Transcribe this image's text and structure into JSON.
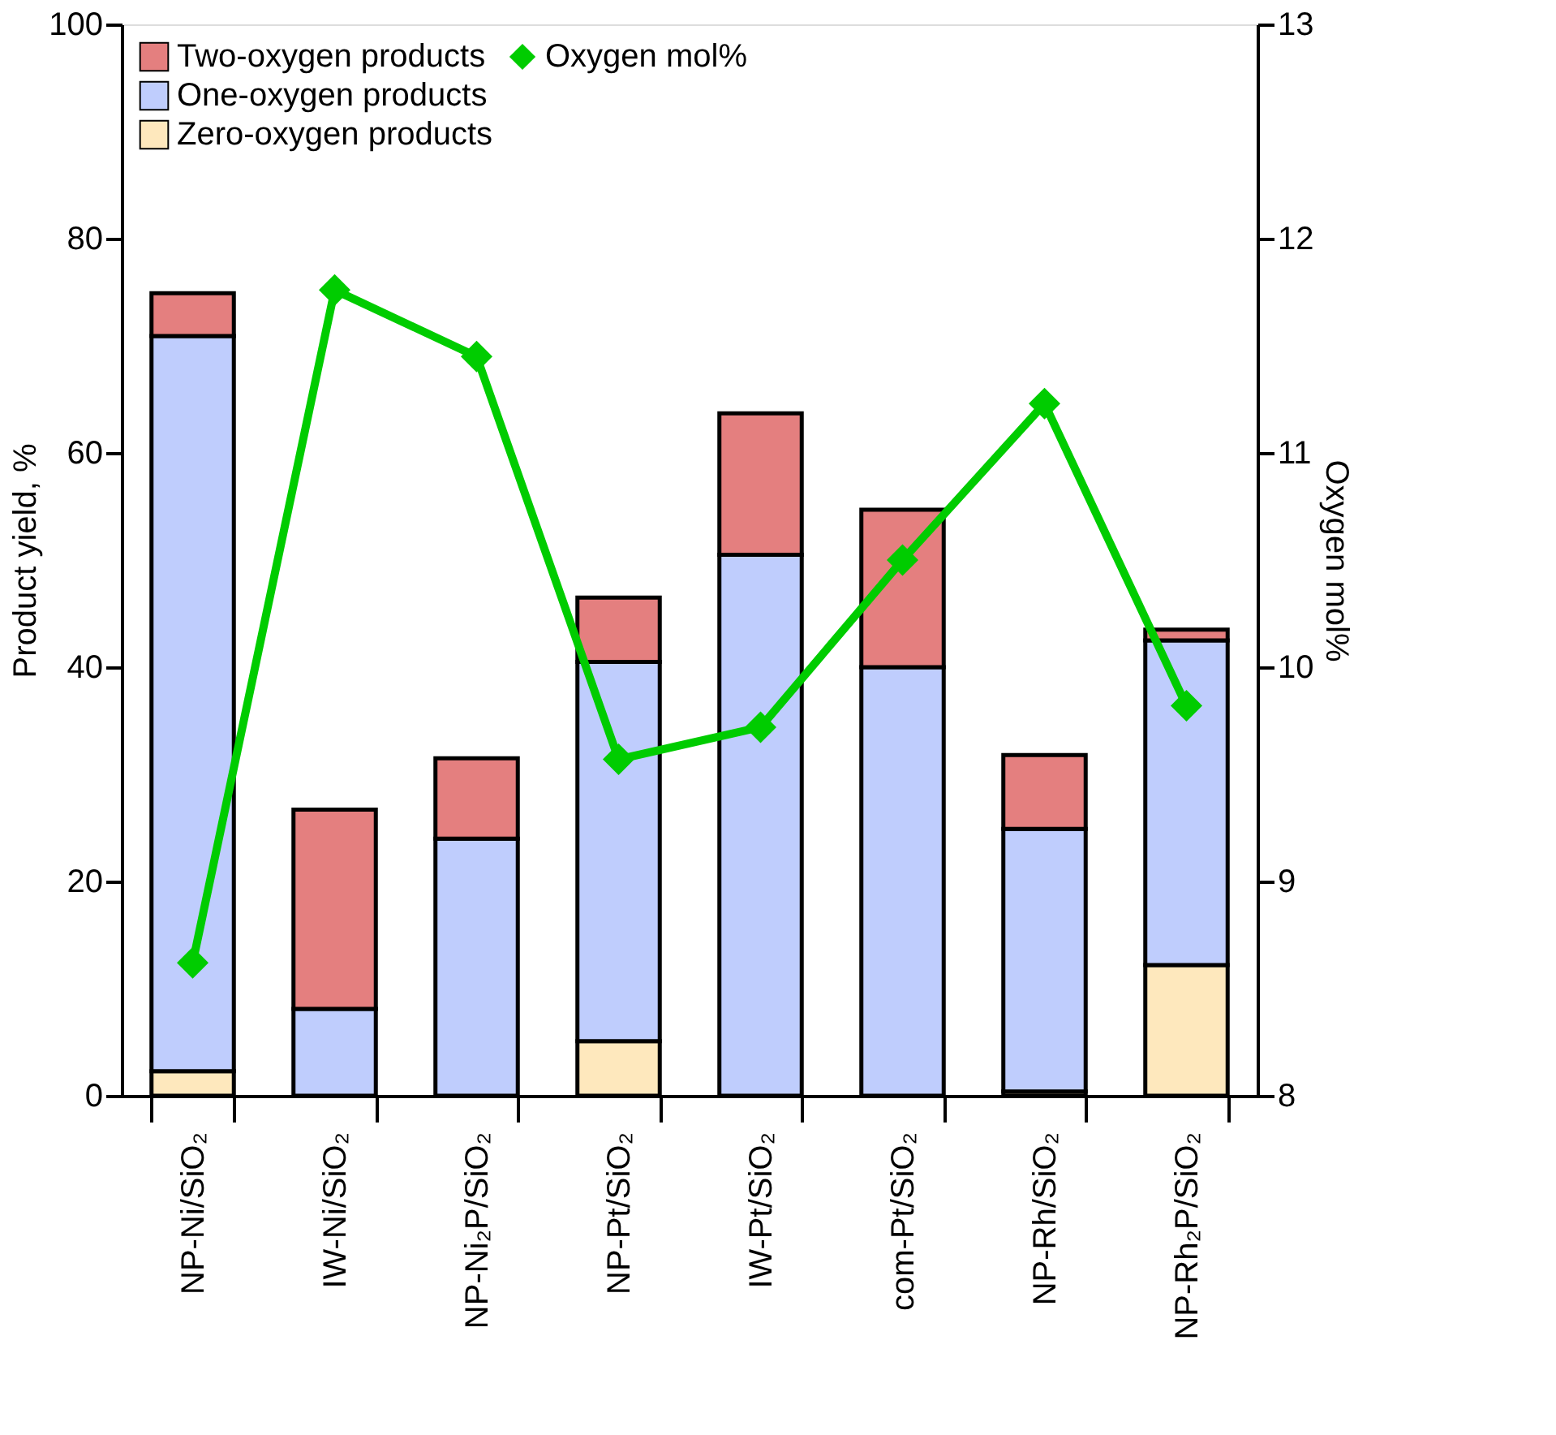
{
  "chart_data": {
    "type": "bar",
    "stacked": true,
    "ylabel": "Product yield, %",
    "y2label": "Oxygen mol%",
    "categories": [
      "NP-Ni/SiO₂",
      "IW-Ni/SiO₂",
      "NP-Ni₂P/SiO₂",
      "NP-Pt/SiO₂",
      "IW-Pt/SiO₂",
      "com-Pt/SiO₂",
      "NP-Rh/SiO₂",
      "NP-Rh₂P/SiO₂"
    ],
    "series": [
      {
        "name": "Zero-oxygen products",
        "color": "#fee8bd",
        "values": [
          2.3,
          0,
          0,
          5.1,
          0,
          0,
          0.4,
          12.2
        ]
      },
      {
        "name": "One-oxygen products",
        "color": "#bfcdfd",
        "values": [
          68.6,
          8.1,
          24,
          35.4,
          50.5,
          40,
          24.5,
          30.3
        ]
      },
      {
        "name": "Two-oxygen products",
        "color": "#e47f7f",
        "values": [
          4.0,
          18.6,
          7.5,
          6.0,
          13.2,
          14.7,
          6.9,
          1.0
        ]
      },
      {
        "name": "Oxygen mol%",
        "type": "line",
        "axis": "y2",
        "color": "#00cc00",
        "marker": "diamond",
        "line_style": "solid",
        "values": [
          8.62,
          11.76,
          11.45,
          9.57,
          9.72,
          10.5,
          11.23,
          9.82
        ]
      }
    ],
    "ylim": [
      0,
      100
    ],
    "yticks": [
      0,
      20,
      40,
      60,
      80,
      100
    ],
    "y2lim": [
      8,
      13
    ],
    "y2ticks": [
      8,
      9,
      10,
      11,
      12,
      13
    ],
    "grid": false,
    "legend": "top left"
  }
}
